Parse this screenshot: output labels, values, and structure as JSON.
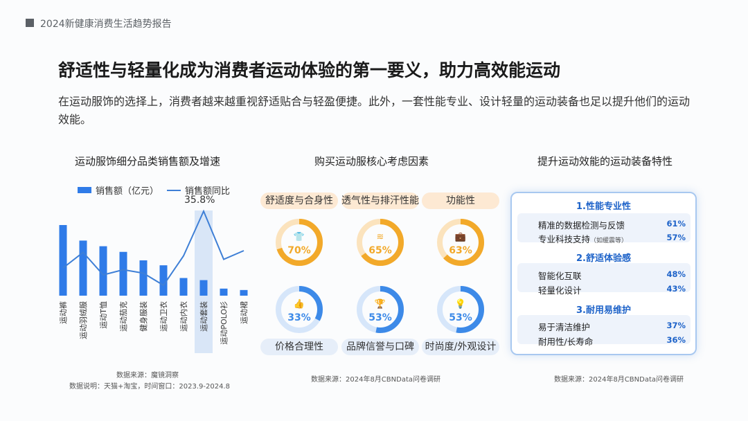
{
  "header": {
    "report_title": "2024新健康消费生活趋势报告"
  },
  "headline": "舒适性与轻量化成为消费者运动体验的第一要义，助力高效能运动",
  "intro": "在运动服饰的选择上，消费者越来越重视舒适贴合与轻盈便捷。此外，一套性能专业、设计轻量的运动装备也足以提升他们的运动效能。",
  "left_panel": {
    "title": "运动服饰细分品类销售额及增速",
    "legend_bar": "销售额（亿元）",
    "legend_line": "销售额同比",
    "callout": "35.8%",
    "source": "数据来源：魔镜洞察",
    "note": "数据说明：天猫+淘宝，时间窗口：2023.9-2024.8"
  },
  "middle_panel": {
    "title": "购买运动服核心考虑因素",
    "items": [
      {
        "label": "舒适度与合身性",
        "pct": "70%",
        "value": 70,
        "icon": "tshirt-icon"
      },
      {
        "label": "透气性与排汗性能",
        "pct": "65%",
        "value": 65,
        "icon": "breathable-fabric-icon"
      },
      {
        "label": "功能性",
        "pct": "63%",
        "value": 63,
        "icon": "bag-icon"
      },
      {
        "label": "价格合理性",
        "pct": "33%",
        "value": 33,
        "icon": "thumbs-up-icon"
      },
      {
        "label": "品牌信誉与口碑",
        "pct": "53%",
        "value": 53,
        "icon": "trophy-icon"
      },
      {
        "label": "时尚度/外观设计",
        "pct": "53%",
        "value": 53,
        "icon": "lightbulb-icon"
      }
    ],
    "source": "数据来源：2024年8月CBNData问卷调研"
  },
  "right_panel": {
    "title": "提升运动效能的运动装备特性",
    "sections": [
      {
        "heading": "1.性能专业性",
        "rows": [
          {
            "label": "精准的数据检测与反馈",
            "note": "",
            "value": "61%"
          },
          {
            "label": "专业科技支持",
            "note": "（如缓震等）",
            "value": "57%"
          }
        ]
      },
      {
        "heading": "2.舒适体验感",
        "rows": [
          {
            "label": "智能化互联",
            "note": "",
            "value": "48%"
          },
          {
            "label": "轻量化设计",
            "note": "",
            "value": "43%"
          }
        ]
      },
      {
        "heading": "3.耐用易维护",
        "rows": [
          {
            "label": "易于清洁维护",
            "note": "",
            "value": "37%"
          },
          {
            "label": "耐用性/长寿命",
            "note": "",
            "value": "36%"
          }
        ]
      }
    ],
    "source": "数据来源：2024年8月CBNData问卷调研"
  },
  "colors": {
    "bar": "#2f7be8",
    "line": "#3e7fd6",
    "top_ring": "#f2a92a",
    "bottom_ring": "#3d8ae8",
    "highlight": "#d9e6f7"
  },
  "chart_data": [
    {
      "type": "bar",
      "title": "运动服饰细分品类销售额及增速",
      "categories": [
        "运动裤",
        "运动羽绒服",
        "运动T恤",
        "运动茄克",
        "健身服装",
        "运动卫衣",
        "运动内衣",
        "运动套装",
        "运动POLO衫",
        "运动裙"
      ],
      "series": [
        {
          "name": "销售额（亿元）",
          "type": "bar",
          "values": [
            100,
            78,
            70,
            62,
            50,
            43,
            25,
            22,
            10,
            8
          ]
        },
        {
          "name": "销售额同比",
          "type": "line",
          "values": [
            3,
            12,
            -1,
            2,
            0,
            -7,
            10,
            35.8,
            8,
            13
          ]
        }
      ],
      "highlight_category": "运动套装",
      "annotations": [
        "35.8%"
      ],
      "legend": "top"
    },
    {
      "type": "pie",
      "title": "购买运动服核心考虑因素",
      "categories": [
        "舒适度与合身性",
        "透气性与排汗性能",
        "功能性",
        "价格合理性",
        "品牌信誉与口碑",
        "时尚度/外观设计"
      ],
      "values": [
        70,
        65,
        63,
        33,
        53,
        53
      ]
    }
  ]
}
